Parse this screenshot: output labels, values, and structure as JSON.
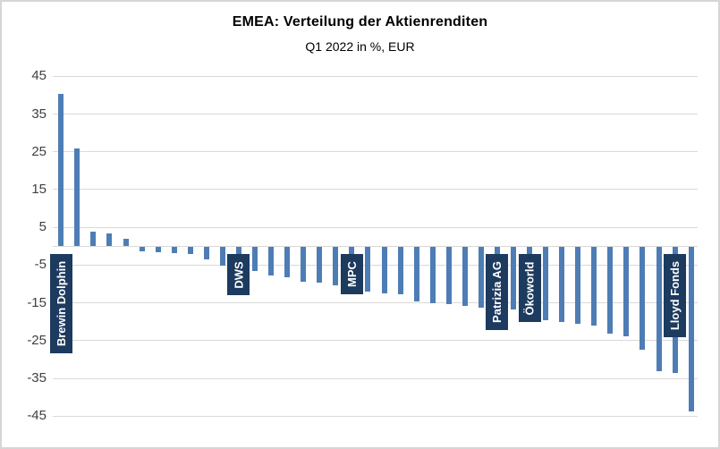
{
  "chart_data": {
    "type": "bar",
    "title": "EMEA: Verteilung der Aktienrenditen",
    "subtitle": "Q1 2022 in %, EUR",
    "xlabel": "",
    "ylabel": "",
    "ylim": [
      -45,
      45
    ],
    "yticks": [
      45,
      35,
      25,
      15,
      5,
      -5,
      -15,
      -25,
      -35,
      -45
    ],
    "grid": true,
    "legend": false,
    "colors": {
      "bar": "#4E7DB5",
      "gridline": "#D9D9D9",
      "axis_line": "#D9D9D9",
      "label_box": "#1D3A5F",
      "label_text": "#FFFFFF",
      "frame_border": "#D6D6D6",
      "tick_text": "#3F3F3F"
    },
    "values": [
      40.3,
      25.8,
      3.9,
      3.3,
      2.0,
      -1.2,
      -1.4,
      -1.6,
      -1.8,
      -3.2,
      -4.8,
      -5.5,
      -6.3,
      -7.5,
      -7.9,
      -9.1,
      -9.5,
      -10.1,
      -11.5,
      -11.7,
      -12.2,
      -12.4,
      -14.4,
      -14.9,
      -15.2,
      -15.6,
      -16.0,
      -16.2,
      -16.4,
      -18.0,
      -19.4,
      -19.9,
      -20.4,
      -20.7,
      -22.9,
      -23.5,
      -27.1,
      -32.8,
      -33.4,
      -43.6
    ],
    "annotated_bars": [
      {
        "index": 0,
        "label": "Brewin Dolphin"
      },
      {
        "index": 11,
        "label": "DWS"
      },
      {
        "index": 18,
        "label": "MPC"
      },
      {
        "index": 27,
        "label": "Patrizia AG"
      },
      {
        "index": 29,
        "label": "Ökoworld"
      },
      {
        "index": 38,
        "label": "Lloyd Fonds"
      }
    ]
  }
}
